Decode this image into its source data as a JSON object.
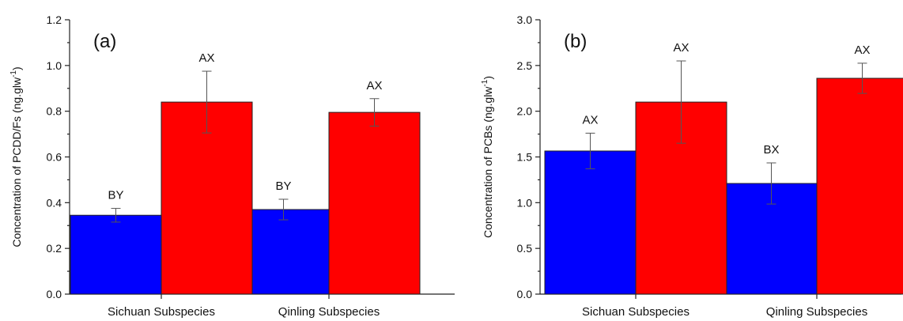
{
  "chart_data": [
    {
      "type": "bar",
      "panel_label": "(a)",
      "ylabel": "Concentration of PCDD/Fs (ng.glw",
      "ylabel_unit_sup": "-1",
      "ylabel_close": ")",
      "categories": [
        "Sichuan Subspecies",
        "Qinling Subspecies"
      ],
      "ylim": [
        0,
        1.2
      ],
      "yticks": [
        0.0,
        0.2,
        0.4,
        0.6,
        0.8,
        1.0,
        1.2
      ],
      "ytick_labels": [
        "0.0",
        "0.2",
        "0.4",
        "0.6",
        "0.8",
        "1.0",
        "1.2"
      ],
      "grid": false,
      "series": [
        {
          "color": "#0000ff",
          "values": [
            0.345,
            0.37
          ],
          "errors": [
            0.03,
            0.045
          ],
          "labels": [
            "BY",
            "BY"
          ]
        },
        {
          "color": "#ff0000",
          "values": [
            0.84,
            0.795
          ],
          "errors": [
            0.135,
            0.06
          ],
          "labels": [
            "AX",
            "AX"
          ]
        }
      ]
    },
    {
      "type": "bar",
      "panel_label": "(b)",
      "ylabel": "Concentration of PCBs (ng.glw",
      "ylabel_unit_sup": "-1",
      "ylabel_close": ")",
      "categories": [
        "Sichuan Subspecies",
        "Qinling Subspecies"
      ],
      "ylim": [
        0,
        3.0
      ],
      "yticks": [
        0.0,
        0.5,
        1.0,
        1.5,
        2.0,
        2.5,
        3.0
      ],
      "ytick_labels": [
        "0.0",
        "0.5",
        "1.0",
        "1.5",
        "2.0",
        "2.5",
        "3.0"
      ],
      "grid": false,
      "series": [
        {
          "color": "#0000ff",
          "values": [
            1.565,
            1.21
          ],
          "errors": [
            0.195,
            0.225
          ],
          "labels": [
            "AX",
            "BX"
          ]
        },
        {
          "color": "#ff0000",
          "values": [
            2.1,
            2.36
          ],
          "errors": [
            0.45,
            0.165
          ],
          "labels": [
            "AX",
            "AX"
          ]
        }
      ]
    }
  ]
}
